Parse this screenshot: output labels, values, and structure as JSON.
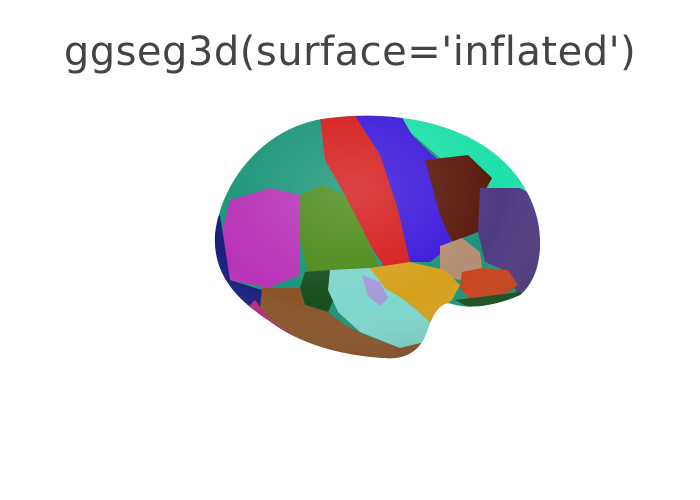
{
  "title": "ggseg3d(surface='inflated')",
  "colors": {
    "title_text": "#444444",
    "background": "#ffffff"
  },
  "brain": {
    "surface": "inflated",
    "view": "lateral",
    "regions": [
      {
        "name": "region-teal-dark",
        "color": "#1a9579"
      },
      {
        "name": "region-magenta",
        "color": "#b833b7"
      },
      {
        "name": "region-navy",
        "color": "#1a1f7e"
      },
      {
        "name": "region-green",
        "color": "#4a8a19"
      },
      {
        "name": "region-red",
        "color": "#d41b1b"
      },
      {
        "name": "region-blue",
        "color": "#3b18d9"
      },
      {
        "name": "region-aqua",
        "color": "#1fe0a9"
      },
      {
        "name": "region-maroon",
        "color": "#5a1a0c"
      },
      {
        "name": "region-purple",
        "color": "#4f3a82"
      },
      {
        "name": "region-tan",
        "color": "#b48e74"
      },
      {
        "name": "region-orange-red",
        "color": "#c9421a"
      },
      {
        "name": "region-gold",
        "color": "#d6a01c"
      },
      {
        "name": "region-dark-green",
        "color": "#174f1f"
      },
      {
        "name": "region-light-teal",
        "color": "#7fd6cc"
      },
      {
        "name": "region-lavender",
        "color": "#a59ad8"
      },
      {
        "name": "region-brown",
        "color": "#8a5429"
      },
      {
        "name": "region-pink-magenta",
        "color": "#b5287e"
      }
    ]
  }
}
